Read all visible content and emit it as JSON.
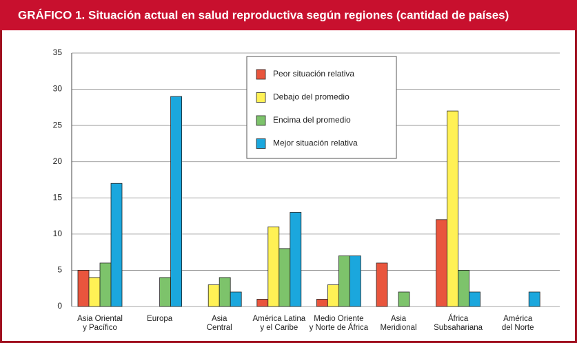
{
  "chart_data": {
    "type": "bar",
    "title": "GRÁFICO 1. Situación actual en salud reproductiva según regiones (cantidad de países)",
    "categories": [
      [
        "Asia Oriental",
        "y Pacífico"
      ],
      [
        "Europa"
      ],
      [
        "Asia",
        "Central"
      ],
      [
        "América Latina",
        "y el Caribe"
      ],
      [
        "Medio Oriente",
        "y Norte de África"
      ],
      [
        "Asia",
        "Meridional"
      ],
      [
        "África",
        "Subsahariana"
      ],
      [
        "América",
        "del Norte"
      ]
    ],
    "series": [
      {
        "name": "Peor situación relativa",
        "color": "#e9553d",
        "values": [
          5,
          0,
          0,
          1,
          1,
          6,
          12,
          0
        ]
      },
      {
        "name": "Debajo del promedio",
        "color": "#fff155",
        "values": [
          4,
          0,
          3,
          11,
          3,
          0,
          27,
          0
        ]
      },
      {
        "name": "Encima del promedio",
        "color": "#7dc36b",
        "values": [
          6,
          4,
          4,
          8,
          7,
          2,
          5,
          0
        ]
      },
      {
        "name": "Mejor situación relativa",
        "color": "#1ba7dd",
        "values": [
          17,
          29,
          2,
          13,
          7,
          0,
          2,
          2
        ]
      }
    ],
    "ylim": [
      0,
      35
    ],
    "yticks": [
      0,
      5,
      10,
      15,
      20,
      25,
      30,
      35
    ],
    "grid": true
  }
}
